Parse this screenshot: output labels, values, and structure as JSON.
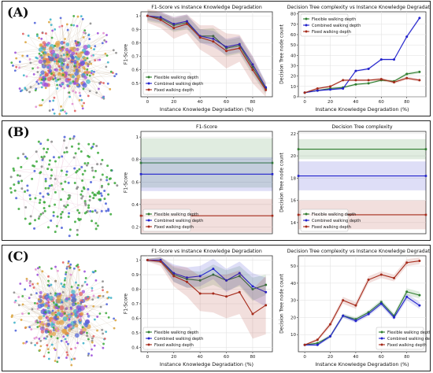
{
  "panels": [
    {
      "label": "(A)",
      "network": {
        "density": "dense"
      }
    },
    {
      "label": "(B)",
      "network": {
        "density": "sparse"
      }
    },
    {
      "label": "(C)",
      "network": {
        "density": "dense"
      }
    }
  ],
  "colors": {
    "flexible": "#2e7d2e",
    "combined": "#2222cc",
    "fixed": "#a52a1a"
  },
  "chart_data": [
    {
      "id": "a-f1",
      "type": "line",
      "title": "F1-Score vs Instance Knowledge Degradation",
      "xlabel": "Instance Knowledge Degradation (%)",
      "ylabel": "F1-Score",
      "xlim": [
        -5,
        95
      ],
      "ylim": [
        0.4,
        1.03
      ],
      "xticks": [
        0,
        20,
        40,
        60,
        80
      ],
      "yticks": [
        0.5,
        0.6,
        0.7,
        0.8,
        0.9,
        1.0
      ],
      "x": [
        0,
        10,
        20,
        30,
        40,
        50,
        60,
        70,
        80,
        90
      ],
      "series": [
        {
          "name": "Flexible walking depth",
          "color": "#2e7d2e",
          "values": [
            1.0,
            0.98,
            0.93,
            0.95,
            0.85,
            0.85,
            0.76,
            0.78,
            0.62,
            0.46
          ],
          "band": [
            0.04,
            0.04,
            0.05,
            0.05,
            0.05,
            0.06,
            0.06,
            0.06,
            0.06,
            0.04
          ]
        },
        {
          "name": "Combined walking depth",
          "color": "#2222cc",
          "values": [
            1.0,
            0.99,
            0.94,
            0.96,
            0.85,
            0.83,
            0.77,
            0.79,
            0.64,
            0.47
          ],
          "band": [
            0.03,
            0.04,
            0.05,
            0.05,
            0.05,
            0.06,
            0.06,
            0.06,
            0.06,
            0.04
          ]
        },
        {
          "name": "Fixed walking depth",
          "color": "#a52a1a",
          "values": [
            1.0,
            0.97,
            0.91,
            0.94,
            0.84,
            0.81,
            0.74,
            0.76,
            0.6,
            0.45
          ],
          "band": [
            0.05,
            0.06,
            0.08,
            0.07,
            0.09,
            0.12,
            0.13,
            0.1,
            0.1,
            0.05
          ]
        }
      ],
      "legend": "bottom-left"
    },
    {
      "id": "a-dt",
      "type": "line",
      "title": "Decision Tree complexity vs Instance Knowledge Degradation",
      "xlabel": "Instance Knowledge Degradation (%)",
      "ylabel": "Decision Tree node count",
      "xlim": [
        -5,
        95
      ],
      "ylim": [
        0,
        82
      ],
      "xticks": [
        0,
        20,
        40,
        60,
        80
      ],
      "yticks": [
        0,
        10,
        20,
        30,
        40,
        50,
        60,
        70,
        80
      ],
      "x": [
        0,
        10,
        20,
        30,
        40,
        50,
        60,
        70,
        80,
        90
      ],
      "series": [
        {
          "name": "Flexible walking depth",
          "color": "#2e7d2e",
          "values": [
            4,
            6,
            8,
            9,
            12,
            13,
            16,
            15,
            22,
            24
          ],
          "band": [
            0.5,
            0.8,
            1,
            1,
            1,
            1,
            1,
            1,
            1.5,
            1.5
          ]
        },
        {
          "name": "Combined walking depth",
          "color": "#2222cc",
          "values": [
            4,
            6,
            7,
            8,
            25,
            27,
            36,
            36,
            58,
            76
          ],
          "band": [
            0.5,
            0.8,
            1,
            1,
            1,
            1,
            1,
            1,
            1.5,
            1.5
          ]
        },
        {
          "name": "Fixed walking depth",
          "color": "#a52a1a",
          "values": [
            4,
            8,
            10,
            16,
            16,
            16,
            17,
            14,
            18,
            16
          ],
          "band": [
            0.5,
            1,
            1,
            1,
            1,
            1,
            1.5,
            1.5,
            1.5,
            1.5
          ]
        }
      ],
      "legend": "top-left"
    },
    {
      "id": "b-f1",
      "type": "line",
      "title": "F1-Score",
      "xlabel": "",
      "ylabel": "F1-Score",
      "xlim": [
        0,
        1
      ],
      "ylim": [
        0.14,
        1.05
      ],
      "xticks": [],
      "yticks": [
        0.2,
        0.4,
        0.6,
        0.8,
        1.0
      ],
      "x": [
        0,
        1
      ],
      "series": [
        {
          "name": "Flexible walking depth",
          "color": "#2e7d2e",
          "values": [
            0.77,
            0.77
          ],
          "band": [
            0.22,
            0.22
          ]
        },
        {
          "name": "Combined walking depth",
          "color": "#2222cc",
          "values": [
            0.67,
            0.67
          ],
          "band": [
            0.15,
            0.15
          ]
        },
        {
          "name": "Fixed walking depth",
          "color": "#a52a1a",
          "values": [
            0.3,
            0.3
          ],
          "band": [
            0.15,
            0.15
          ]
        }
      ],
      "legend": "bottom-left"
    },
    {
      "id": "b-dt",
      "type": "line",
      "title": "Decision Tree complexity",
      "xlabel": "",
      "ylabel": "Decision Tree node count",
      "xlim": [
        0,
        1
      ],
      "ylim": [
        13,
        22.2
      ],
      "xticks": [],
      "yticks": [
        14,
        16,
        18,
        20,
        22
      ],
      "x": [
        0,
        1
      ],
      "series": [
        {
          "name": "Flexible walking depth",
          "color": "#2e7d2e",
          "values": [
            20.6,
            20.6
          ],
          "band": [
            0.9,
            0.9
          ]
        },
        {
          "name": "Combined walking depth",
          "color": "#2222cc",
          "values": [
            18.2,
            18.2
          ],
          "band": [
            1.3,
            1.3
          ]
        },
        {
          "name": "Fixed walking depth",
          "color": "#a52a1a",
          "values": [
            14.7,
            14.7
          ],
          "band": [
            1.3,
            1.3
          ]
        }
      ],
      "legend": "bottom-left"
    },
    {
      "id": "c-f1",
      "type": "line",
      "title": "F1-Score vs Instance Knowledge Degradation",
      "xlabel": "Instance Knowledge Degradation (%)",
      "ylabel": "F1-Score",
      "xlim": [
        -5,
        95
      ],
      "ylim": [
        0.37,
        1.03
      ],
      "xticks": [
        0,
        20,
        40,
        60,
        80
      ],
      "yticks": [
        0.4,
        0.5,
        0.6,
        0.7,
        0.8,
        0.9,
        1.0
      ],
      "x": [
        0,
        10,
        20,
        30,
        40,
        50,
        60,
        70,
        80,
        90
      ],
      "series": [
        {
          "name": "Flexible walking depth",
          "color": "#2e7d2e",
          "values": [
            1.0,
            1.0,
            0.9,
            0.87,
            0.86,
            0.9,
            0.86,
            0.89,
            0.8,
            0.83
          ],
          "band": [
            0.01,
            0.02,
            0.05,
            0.06,
            0.06,
            0.07,
            0.07,
            0.07,
            0.08,
            0.07
          ]
        },
        {
          "name": "Combined walking depth",
          "color": "#2222cc",
          "values": [
            1.0,
            1.0,
            0.91,
            0.88,
            0.89,
            0.94,
            0.86,
            0.91,
            0.82,
            0.78
          ],
          "band": [
            0.01,
            0.02,
            0.06,
            0.07,
            0.07,
            0.07,
            0.08,
            0.08,
            0.09,
            0.1
          ]
        },
        {
          "name": "Fixed walking depth",
          "color": "#a52a1a",
          "values": [
            1.0,
            0.99,
            0.89,
            0.85,
            0.77,
            0.77,
            0.75,
            0.78,
            0.63,
            0.69
          ],
          "band": [
            0.01,
            0.03,
            0.07,
            0.1,
            0.12,
            0.13,
            0.15,
            0.15,
            0.17,
            0.2
          ]
        }
      ],
      "legend": "bottom-left"
    },
    {
      "id": "c-dt",
      "type": "line",
      "title": "Decision Tree complexity vs Instance Knowledge Degradation",
      "xlabel": "Instance Knowledge Degradation (%)",
      "ylabel": "Decision Tree node count",
      "xlim": [
        -5,
        95
      ],
      "ylim": [
        0,
        56
      ],
      "xticks": [
        0,
        20,
        40,
        60,
        80
      ],
      "yticks": [
        10,
        20,
        30,
        40,
        50
      ],
      "x": [
        0,
        10,
        20,
        30,
        40,
        50,
        60,
        70,
        80,
        90
      ],
      "series": [
        {
          "name": "Flexible walking depth",
          "color": "#2e7d2e",
          "values": [
            4,
            5,
            9,
            21,
            19,
            23,
            29,
            21,
            35,
            33
          ],
          "band": [
            0.5,
            0.8,
            1,
            1.2,
            1.2,
            1.2,
            1.5,
            1.5,
            2,
            2
          ]
        },
        {
          "name": "Combined walking depth",
          "color": "#2222cc",
          "values": [
            4,
            4,
            9,
            21,
            18,
            22,
            28,
            20,
            32,
            27
          ],
          "band": [
            0.5,
            0.8,
            1,
            1.2,
            1.2,
            1.2,
            1.5,
            1.5,
            2,
            2
          ]
        },
        {
          "name": "Fixed walking depth",
          "color": "#a52a1a",
          "values": [
            4,
            7,
            16,
            30,
            27,
            42,
            45,
            43,
            52,
            53
          ],
          "band": [
            0.5,
            1,
            1.5,
            2,
            2,
            2,
            2,
            2,
            2,
            2
          ]
        }
      ],
      "legend": "bottom-right"
    }
  ]
}
